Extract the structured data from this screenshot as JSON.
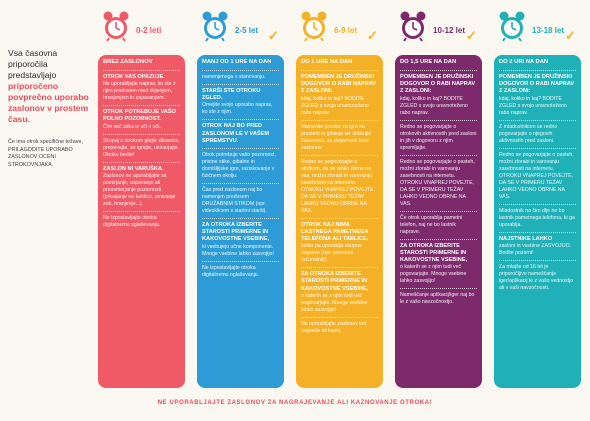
{
  "intro": {
    "lead": "Vsa časovna priporočila predstavljajo",
    "highlight": "priporočeno povprečno uporabo zaslonov v prostem času.",
    "note": "Če ima otrok specifične težave, PRILAGODITE UPORABO ZASLONOV OCENI STROKOVNJAKA."
  },
  "colors": {
    "col1": "#f05a67",
    "col2": "#2d9bd5",
    "col3": "#f4b128",
    "col4": "#7d2a6d",
    "col5": "#1fb0b8",
    "check": "#f4b128",
    "accent": "#ef4a5b"
  },
  "columns": [
    {
      "age": "0-2 leti",
      "header": "BREZ ZASLONOV",
      "rows": [
        {
          "title": "OTROK VAS OPAZUJE.",
          "text": "Ne uporabljajte naprav, ko ste z njim predvsem med dojenjem, hranjenjem in uspavanjem."
        },
        {
          "title": "OTROK POTREBUJE VAŠO POLNO POZORNOST.",
          "text": "Čim več stika iz oči v oči."
        },
        {
          "title": "",
          "text": "Skupaj z otrokom glejte slikanice, prepevajte, se igrajte, ustvarjajte. Otroku berite!"
        },
        {
          "title": "ZASLON NI VARUŠKA.",
          "text": "Zaslonov ne uporabljajte za pomirjanje, uspavanje ali preusmerjanje pozornosti (privajanje na kahlico, umivanje zob, hranjenje...)."
        },
        {
          "title": "",
          "text": "Ne izpostavljajte otroka digitalnemu oglaševanju."
        }
      ]
    },
    {
      "age": "2-5 let",
      "header": "MANJ OD 1 URE NA DAN",
      "rows": [
        {
          "title": "",
          "text": "namenjenoga v stanovanju."
        },
        {
          "title": "STARŠI STE OTROKU ZGLED.",
          "text": "Omejite svojo uporabo naprav, ko ste z njim."
        },
        {
          "title": "OTROK NAJ BO PRED ZASLONOM LE V VAŠEM SPREMSTVU.",
          "text": ""
        },
        {
          "title": "",
          "text": "Otrok potrebuje vašo pozornost, pristne stike, gibalne in domišljijske igre, raziskovanje v fizičnem okolju."
        },
        {
          "title": "",
          "text": "Čas pred zaslonom naj bo namenjen predvsem DRUŽABNIM STIKOM (npr. videoklicem s starimi starši)."
        },
        {
          "title": "ZA OTROKA IZBERITE STAROSTI PRIMERNE IN KAKOVOSTNE VSEBINE,",
          "text": "ki vsebujejo učne komponente. Mnoge vsebine lahko zasvojijo!"
        },
        {
          "title": "",
          "text": "Ne izpostavljajte otroka digitalnemu oglaševanju."
        }
      ]
    },
    {
      "age": "6-9 let",
      "header": "DO 1 URE NA DAN",
      "rows": [
        {
          "title": "POMEMBEN JE DRUŽINSKI DOGOVOR O RABI NAPRAV Z ZASLONI:",
          "text": "kdaj, koliko in kaj? BODITE ZGLED s svojo uravnoteženo rabo naprav."
        },
        {
          "title": "",
          "text": "Namenite prostor za igre na prostem in gibanje ter oblikujte časovnico, za dejavnosti brez zaslonov."
        },
        {
          "title": "",
          "text": "Redno se pogovarjajte s otrokom, da se lahko obrne na vas, možni zlorabi in varovanju zasebnosti na internetu. OTROKU VNAPREJ POVEJTE, DA SE V PRIMERU TEŽAV LAHKO VEDNO OBRNE NA VAS."
        },
        {
          "title": "OTROK NAJ NIMA LASTNEGA PAMETNEGA TELEFONA ALI TABLICE,",
          "text": "lahko pa uporablja skupne naprave (npr. prenosni računalnik)."
        },
        {
          "title": "ZA OTROKA IZBERITE STAROSTI PRIMERNE IN KAKOVOSTNE VSEBINE,",
          "text": "o katerih se z njim tudi več pogovarjajte. Mnoge vsebine lahko zasvojijo!"
        },
        {
          "title": "",
          "text": "Ne uporabljajte zaslonov kot nagrade ali kazni."
        }
      ]
    },
    {
      "age": "10-12 let",
      "header": "DO 1,5 URE NA DAN",
      "rows": [
        {
          "title": "POMEMBEN JE DRUŽINSKI DOGOVOR O RABI NAPRAV Z ZASLONI:",
          "text": "kdaj, koliko in kaj? BODITE ZGLED s svojo uravnoteženo rabo naprav."
        },
        {
          "title": "",
          "text": "Redno se pogovarjajte o otrokovih aktivnostih pred zasloni in jih v dogovoru z njim spremljajte."
        },
        {
          "title": "",
          "text": "Redno se pogovarjajte o pasteh, možni zlorabi in varovanju zasebnosti na internetu. OTROKU VNAPREJ POVEJTE, DA SE V PRIMERU TEŽAV LAHKO VEDNO OBRNE NA VAS."
        },
        {
          "title": "",
          "text": "Če otrok uporablja pametni telefon, naj ne bo lastnik naprave."
        },
        {
          "title": "ZA OTROKA IZBERITE STAROSTI PRIMERNE IN KAKOVOSTNE VSEBINE,",
          "text": "o katerih se z njim tudi več pogovarjajte. Mnoge vsebine lahko zasvojijo!"
        },
        {
          "title": "",
          "text": "Nameščanje aplikacij/iger naj bo le z vašo navzočnostjo."
        }
      ]
    },
    {
      "age": "13-18 let",
      "header": "DO 2 URI NA DAN",
      "rows": [
        {
          "title": "POMEMBEN JE DRUŽINSKI DOGOVOR O RABI NAPRAV Z ZASLONI:",
          "text": "kdaj, koliko in kaj? BODITE ZGLED s svojo uravnoteženo rabo naprav."
        },
        {
          "title": "",
          "text": "Z mladostnikom se redno pogovarjajte o njegovih aktivnostih pred zasloni."
        },
        {
          "title": "",
          "text": "Redno se pogovarjajte o pasteh, možni zlorabi in varovanju zasebnosti na internetu. OTROKU VNAPREJ POVEJTE, DA SE V PRIMERU TEŽAV LAHKO VEDNO OBRNE NA VAS."
        },
        {
          "title": "",
          "text": "Mladostnik na čim dlje ne bo lastnik pametnega telefona, ki ga uporablja."
        },
        {
          "title": "NAJSTNIKE LAHKO",
          "text": "zasloni in vsebine ZASVOJIJO. Bodite pozorni!"
        },
        {
          "title": "",
          "text": "Za mlajše od 16 let je priporočljivo nameščanje iger/aplikacij le z vašo vednostjo ali v vaši navzočnosti."
        }
      ]
    }
  ],
  "footer": "NE UPORABLJAJTE ZASLONOV ZA NAGRAJEVANJE ALI KAZNOVANJE OTROKA!"
}
